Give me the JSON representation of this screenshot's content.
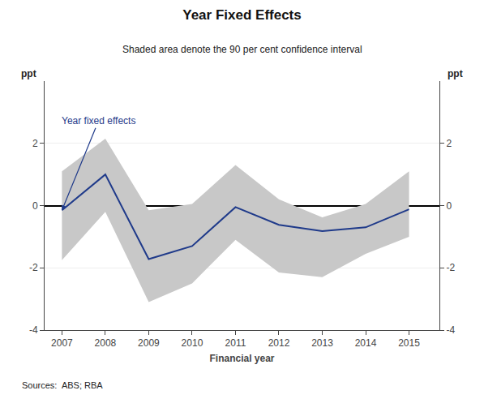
{
  "chart_data": {
    "type": "line",
    "title": "Year Fixed Effects",
    "subtitle": "Shaded area denote the 90 per cent confidence interval",
    "xlabel": "Financial year",
    "ylabel": "ppt",
    "y2label": "ppt",
    "source": "Sources:  ABS; RBA",
    "annotation": "Year fixed effects",
    "x": [
      2007,
      2008,
      2009,
      2010,
      2011,
      2012,
      2013,
      2014,
      2015
    ],
    "series": [
      {
        "type": "line",
        "color": "#1F3A8A",
        "values": [
          -0.15,
          1.0,
          -1.72,
          -1.3,
          -0.05,
          -0.62,
          -0.82,
          -0.7,
          -0.12
        ]
      },
      {
        "type": "band",
        "color": "#C8C8C8",
        "upper": [
          1.1,
          2.15,
          -0.15,
          0.05,
          1.3,
          0.2,
          -0.38,
          0.05,
          1.1
        ],
        "lower": [
          -1.75,
          -0.2,
          -3.1,
          -2.5,
          -1.1,
          -2.15,
          -2.3,
          -1.55,
          -1.0
        ]
      }
    ],
    "xlim": [
      2006.6,
      2015.7
    ],
    "xticks": [
      2007,
      2008,
      2009,
      2010,
      2011,
      2012,
      2013,
      2014,
      2015
    ],
    "ylim": [
      -4,
      4
    ],
    "yticks": [
      -4,
      -2,
      0,
      2
    ],
    "y2lim": [
      -4,
      4
    ],
    "y2ticks": [
      -4,
      -2,
      0,
      2
    ],
    "grid": true
  }
}
